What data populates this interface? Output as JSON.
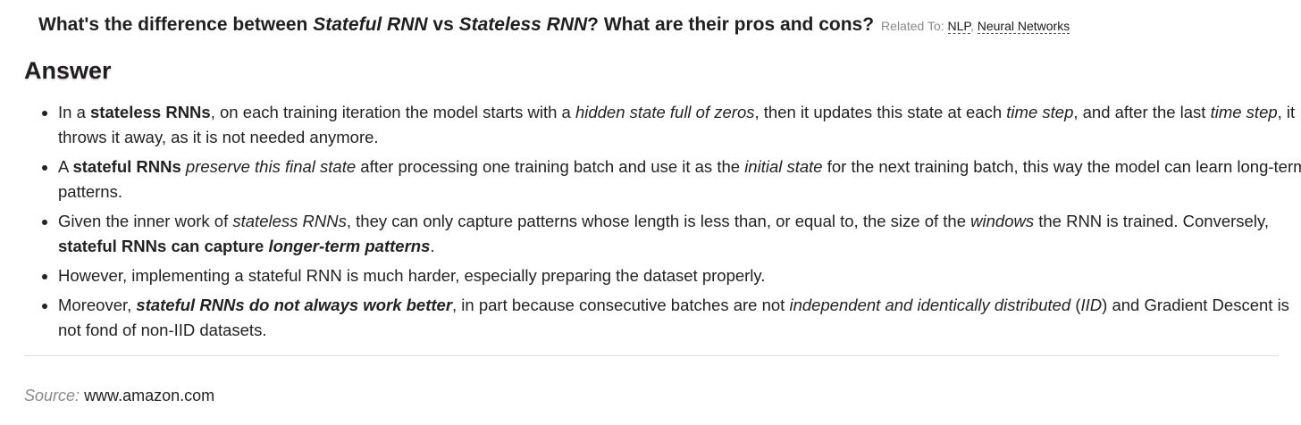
{
  "question": {
    "part1": "What's the difference between ",
    "term1": "Stateful RNN",
    "part2": " vs ",
    "term2": "Stateless RNN",
    "part3": "? What are their pros and cons?",
    "related_label": "Related To:",
    "tags": [
      "NLP",
      "Neural Networks"
    ],
    "tag_separator": ", "
  },
  "answer_heading": "Answer",
  "points": [
    {
      "a": "In a ",
      "b": "stateless RNNs",
      "c": ", on each training iteration the model starts with a ",
      "d": "hidden state full of zeros",
      "e": ", then it updates this state at each ",
      "f": "time step",
      "g": ", and after the last ",
      "h": "time step",
      "i": ", it throws it away, as it is not needed anymore."
    },
    {
      "a": "A ",
      "b": "stateful RNNs",
      "c": " ",
      "d": "preserve this final state",
      "e": " after processing one training batch and use it as the ",
      "f": "initial state",
      "g": " for the next training batch, this way the model can learn long-term patterns."
    },
    {
      "a": "Given the inner work of ",
      "b": "stateless RNNs",
      "c": ", they can only capture patterns whose length is less than, or equal to, the size of the ",
      "d": "windows",
      "e": " the RNN is trained. Conversely, ",
      "f": "stateful RNNs can capture ",
      "g": "longer-term patterns",
      "h": "."
    },
    {
      "a": "However, implementing a stateful RNN is much harder, especially preparing the dataset properly."
    },
    {
      "a": "Moreover, ",
      "b": "stateful RNNs do not always work better",
      "c": ", in part because consecutive batches are not ",
      "d": "independent and identically distributed",
      "e": " (",
      "f": "IID",
      "g": ") and Gradient Descent is not fond of non-IID datasets."
    }
  ],
  "source": {
    "label": "Source:",
    "value": "www.amazon.com"
  }
}
